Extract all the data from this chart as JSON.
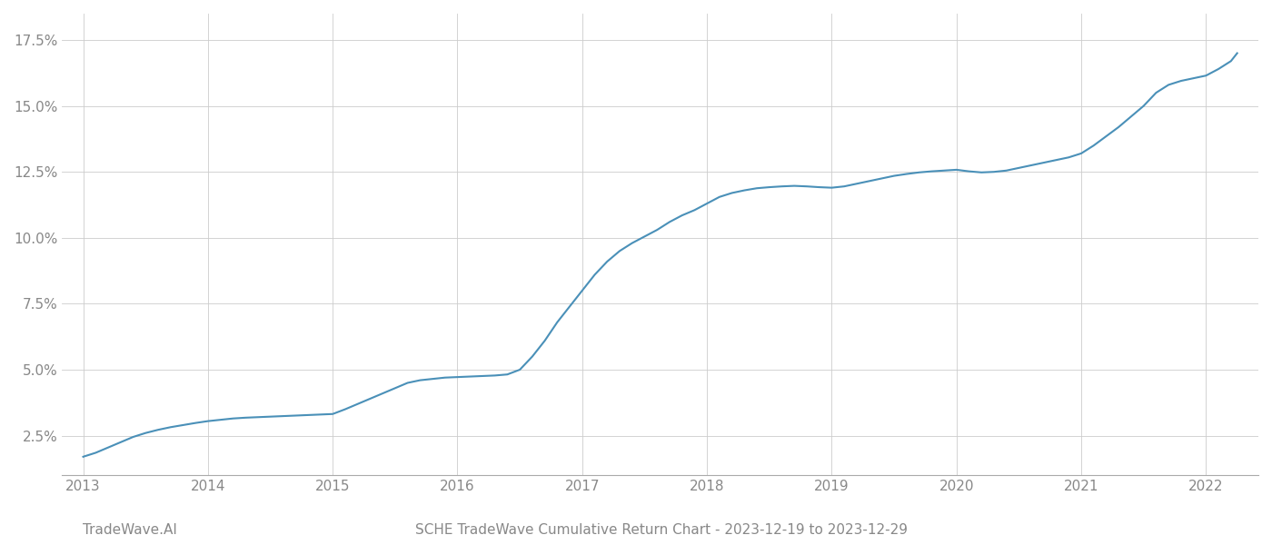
{
  "title": "SCHE TradeWave Cumulative Return Chart - 2023-12-19 to 2023-12-29",
  "watermark": "TradeWave.AI",
  "line_color": "#4a90b8",
  "background_color": "#ffffff",
  "grid_color": "#cccccc",
  "x_years": [
    2013,
    2014,
    2015,
    2016,
    2017,
    2018,
    2019,
    2020,
    2021,
    2022
  ],
  "x_values": [
    2013.0,
    2013.1,
    2013.2,
    2013.3,
    2013.4,
    2013.5,
    2013.6,
    2013.7,
    2013.8,
    2013.9,
    2014.0,
    2014.1,
    2014.2,
    2014.3,
    2014.4,
    2014.5,
    2014.6,
    2014.7,
    2014.8,
    2014.9,
    2015.0,
    2015.1,
    2015.2,
    2015.3,
    2015.4,
    2015.5,
    2015.6,
    2015.7,
    2015.8,
    2015.9,
    2016.0,
    2016.1,
    2016.2,
    2016.3,
    2016.4,
    2016.5,
    2016.6,
    2016.7,
    2016.8,
    2016.9,
    2017.0,
    2017.1,
    2017.2,
    2017.3,
    2017.4,
    2017.5,
    2017.6,
    2017.7,
    2017.8,
    2017.9,
    2018.0,
    2018.1,
    2018.2,
    2018.3,
    2018.4,
    2018.5,
    2018.6,
    2018.7,
    2018.8,
    2018.9,
    2019.0,
    2019.1,
    2019.2,
    2019.3,
    2019.4,
    2019.5,
    2019.6,
    2019.7,
    2019.8,
    2019.9,
    2020.0,
    2020.1,
    2020.2,
    2020.3,
    2020.4,
    2020.5,
    2020.6,
    2020.7,
    2020.8,
    2020.9,
    2021.0,
    2021.1,
    2021.2,
    2021.3,
    2021.4,
    2021.5,
    2021.6,
    2021.7,
    2021.8,
    2021.9,
    2022.0,
    2022.1,
    2022.2,
    2022.25
  ],
  "y_values": [
    1.7,
    1.85,
    2.05,
    2.25,
    2.45,
    2.6,
    2.72,
    2.82,
    2.9,
    2.98,
    3.05,
    3.1,
    3.15,
    3.18,
    3.2,
    3.22,
    3.24,
    3.26,
    3.28,
    3.3,
    3.32,
    3.5,
    3.7,
    3.9,
    4.1,
    4.3,
    4.5,
    4.6,
    4.65,
    4.7,
    4.72,
    4.74,
    4.76,
    4.78,
    4.82,
    5.0,
    5.5,
    6.1,
    6.8,
    7.4,
    8.0,
    8.6,
    9.1,
    9.5,
    9.8,
    10.05,
    10.3,
    10.6,
    10.85,
    11.05,
    11.3,
    11.55,
    11.7,
    11.8,
    11.88,
    11.92,
    11.95,
    11.97,
    11.95,
    11.92,
    11.9,
    11.95,
    12.05,
    12.15,
    12.25,
    12.35,
    12.42,
    12.48,
    12.52,
    12.55,
    12.58,
    12.52,
    12.48,
    12.5,
    12.55,
    12.65,
    12.75,
    12.85,
    12.95,
    13.05,
    13.2,
    13.5,
    13.85,
    14.2,
    14.6,
    15.0,
    15.5,
    15.8,
    15.95,
    16.05,
    16.15,
    16.4,
    16.7,
    17.0
  ],
  "ylim": [
    1.0,
    18.5
  ],
  "yticks": [
    2.5,
    5.0,
    7.5,
    10.0,
    12.5,
    15.0,
    17.5
  ],
  "xlim": [
    2012.83,
    2022.42
  ],
  "title_fontsize": 11,
  "watermark_fontsize": 11,
  "tick_fontsize": 11,
  "tick_color": "#888888",
  "spine_color": "#aaaaaa",
  "line_width": 1.5
}
